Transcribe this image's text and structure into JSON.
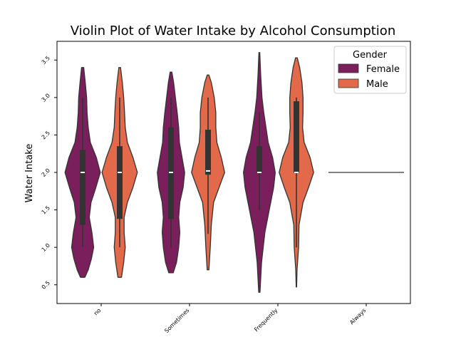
{
  "chart_data": {
    "type": "violin",
    "title": "Violin Plot of Water Intake by Alcohol Consumption",
    "xlabel": "",
    "ylabel": "Water Intake",
    "categories": [
      "no",
      "Sometimes",
      "Frequently",
      "Always"
    ],
    "ylim": [
      0.25,
      3.75
    ],
    "yticks": [
      0.5,
      1.0,
      1.5,
      2.0,
      2.5,
      3.0,
      3.5
    ],
    "ytick_labels": [
      "0.5",
      "1.0",
      "1.5",
      "2.0",
      "2.5",
      "3.0",
      "3.5"
    ],
    "grid": false,
    "legend": {
      "title": "Gender",
      "placement": "top-right",
      "entries": [
        {
          "label": "Female",
          "color": "#7a1f5c"
        },
        {
          "label": "Male",
          "color": "#e26a4a"
        }
      ]
    },
    "series": [
      {
        "name": "Female",
        "color": "#7a1f5c",
        "violins": [
          {
            "category": "no",
            "ymin": 0.6,
            "ymax": 3.4,
            "profile": [
              [
                0.6,
                0.1
              ],
              [
                0.7,
                0.25
              ],
              [
                0.85,
                0.4
              ],
              [
                1.0,
                0.5
              ],
              [
                1.2,
                0.42
              ],
              [
                1.4,
                0.3
              ],
              [
                1.6,
                0.38
              ],
              [
                1.8,
                0.6
              ],
              [
                2.0,
                0.8
              ],
              [
                2.2,
                0.62
              ],
              [
                2.4,
                0.35
              ],
              [
                2.6,
                0.25
              ],
              [
                2.8,
                0.2
              ],
              [
                3.0,
                0.18
              ],
              [
                3.2,
                0.12
              ],
              [
                3.4,
                0.05
              ]
            ],
            "q1": 1.3,
            "median": 2.0,
            "q3": 2.3,
            "whisker_low": 1.0,
            "whisker_high": 3.0
          },
          {
            "category": "Sometimes",
            "ymin": 0.66,
            "ymax": 3.34,
            "profile": [
              [
                0.66,
                0.1
              ],
              [
                0.8,
                0.25
              ],
              [
                1.0,
                0.35
              ],
              [
                1.2,
                0.4
              ],
              [
                1.4,
                0.35
              ],
              [
                1.6,
                0.4
              ],
              [
                1.8,
                0.55
              ],
              [
                2.0,
                0.62
              ],
              [
                2.2,
                0.5
              ],
              [
                2.4,
                0.38
              ],
              [
                2.6,
                0.35
              ],
              [
                2.8,
                0.28
              ],
              [
                3.0,
                0.2
              ],
              [
                3.2,
                0.12
              ],
              [
                3.34,
                0.04
              ]
            ],
            "q1": 1.38,
            "median": 2.0,
            "q3": 2.6,
            "whisker_low": 1.0,
            "whisker_high": 3.0
          },
          {
            "category": "Frequently",
            "ymin": 0.4,
            "ymax": 3.6,
            "profile": [
              [
                0.4,
                0.03
              ],
              [
                0.8,
                0.1
              ],
              [
                1.2,
                0.25
              ],
              [
                1.5,
                0.45
              ],
              [
                1.8,
                0.65
              ],
              [
                2.0,
                0.72
              ],
              [
                2.2,
                0.6
              ],
              [
                2.4,
                0.4
              ],
              [
                2.6,
                0.3
              ],
              [
                2.8,
                0.2
              ],
              [
                3.0,
                0.12
              ],
              [
                3.3,
                0.06
              ],
              [
                3.6,
                0.02
              ]
            ],
            "q1": 2.0,
            "median": 2.0,
            "q3": 2.35,
            "whisker_low": 1.5,
            "whisker_high": 2.8
          }
        ]
      },
      {
        "name": "Male",
        "color": "#e26a4a",
        "violins": [
          {
            "category": "no",
            "ymin": 0.6,
            "ymax": 3.4,
            "profile": [
              [
                0.6,
                0.08
              ],
              [
                0.8,
                0.18
              ],
              [
                1.0,
                0.25
              ],
              [
                1.2,
                0.2
              ],
              [
                1.4,
                0.2
              ],
              [
                1.6,
                0.35
              ],
              [
                1.8,
                0.6
              ],
              [
                2.0,
                0.8
              ],
              [
                2.2,
                0.6
              ],
              [
                2.4,
                0.35
              ],
              [
                2.6,
                0.25
              ],
              [
                2.8,
                0.22
              ],
              [
                3.0,
                0.18
              ],
              [
                3.2,
                0.12
              ],
              [
                3.4,
                0.04
              ]
            ],
            "q1": 1.38,
            "median": 2.0,
            "q3": 2.35,
            "whisker_low": 1.0,
            "whisker_high": 3.0
          },
          {
            "category": "Sometimes",
            "ymin": 0.7,
            "ymax": 3.3,
            "profile": [
              [
                0.7,
                0.04
              ],
              [
                1.0,
                0.1
              ],
              [
                1.3,
                0.15
              ],
              [
                1.6,
                0.25
              ],
              [
                1.8,
                0.5
              ],
              [
                2.0,
                0.75
              ],
              [
                2.2,
                0.6
              ],
              [
                2.4,
                0.4
              ],
              [
                2.6,
                0.35
              ],
              [
                2.8,
                0.35
              ],
              [
                3.0,
                0.28
              ],
              [
                3.2,
                0.15
              ],
              [
                3.3,
                0.04
              ]
            ],
            "q1": 1.97,
            "median": 2.02,
            "q3": 2.57,
            "whisker_low": 1.18,
            "whisker_high": 3.0
          },
          {
            "category": "Frequently",
            "ymin": 0.47,
            "ymax": 3.53,
            "profile": [
              [
                0.47,
                0.01
              ],
              [
                0.7,
                0.03
              ],
              [
                1.0,
                0.1
              ],
              [
                1.3,
                0.12
              ],
              [
                1.6,
                0.3
              ],
              [
                1.8,
                0.55
              ],
              [
                2.0,
                0.78
              ],
              [
                2.2,
                0.62
              ],
              [
                2.4,
                0.35
              ],
              [
                2.6,
                0.28
              ],
              [
                2.8,
                0.3
              ],
              [
                3.0,
                0.3
              ],
              [
                3.2,
                0.25
              ],
              [
                3.4,
                0.15
              ],
              [
                3.53,
                0.04
              ]
            ],
            "q1": 2.0,
            "median": 2.0,
            "q3": 2.95,
            "whisker_low": 1.0,
            "whisker_high": 3.0
          }
        ]
      },
      {
        "name": "Always",
        "color": "#333333",
        "violins": [
          {
            "category": "Always",
            "constant": 2.0
          }
        ]
      }
    ]
  }
}
